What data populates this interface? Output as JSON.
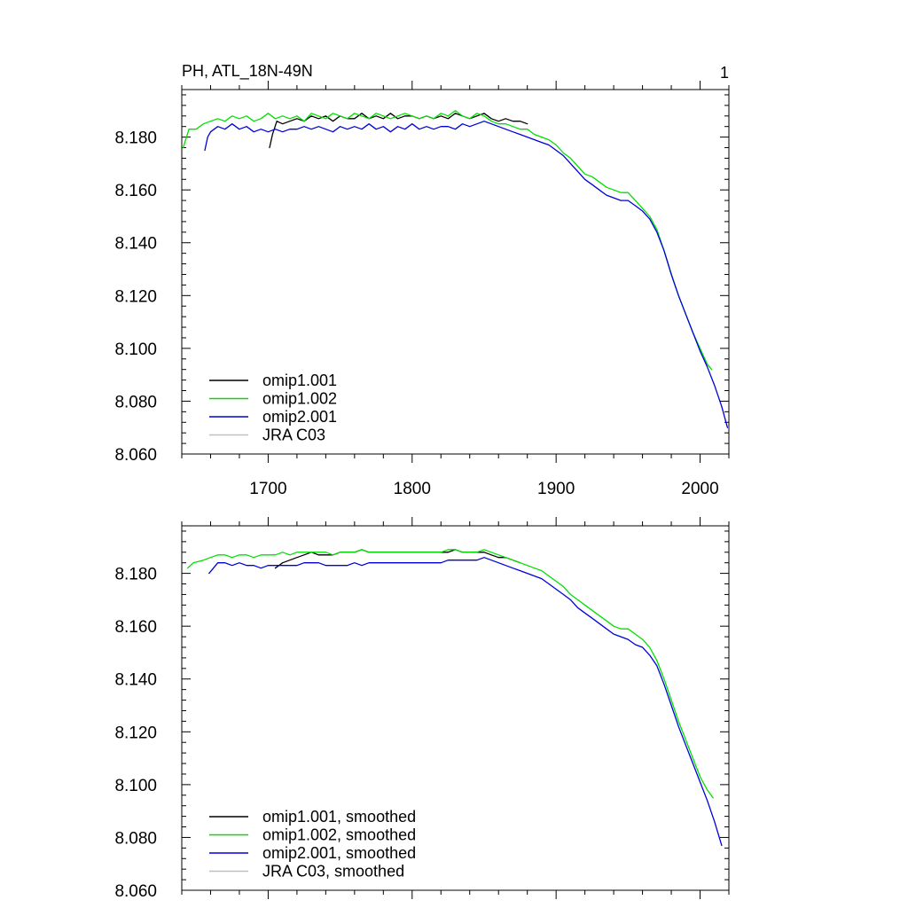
{
  "figure": {
    "title_left": "PH, ATL_18N-49N",
    "title_right": "1"
  },
  "colors": {
    "omip1_001": "#000000",
    "omip1_002": "#00e000",
    "omip2_001": "#0000d8",
    "jra_c03": "#c0c0c0"
  },
  "chart_data": [
    {
      "type": "line",
      "xlim": [
        1640,
        2020
      ],
      "ylim": [
        8.06,
        8.198
      ],
      "xticks": [
        1700,
        1800,
        1900,
        2000
      ],
      "xtick_labels": [
        "1700",
        "1800",
        "1900",
        "2000"
      ],
      "yticks": [
        8.06,
        8.08,
        8.1,
        8.12,
        8.14,
        8.16,
        8.18
      ],
      "ytick_labels": [
        "8.060",
        "8.080",
        "8.100",
        "8.120",
        "8.140",
        "8.160",
        "8.180"
      ],
      "legend_position": "bottom-left",
      "series": [
        {
          "name": "omip1.001",
          "color": "#000000",
          "x": [
            1701,
            1703,
            1706,
            1710,
            1715,
            1720,
            1725,
            1730,
            1735,
            1740,
            1745,
            1750,
            1755,
            1760,
            1765,
            1770,
            1775,
            1780,
            1785,
            1790,
            1795,
            1800,
            1805,
            1810,
            1815,
            1820,
            1825,
            1830,
            1835,
            1840,
            1845,
            1850,
            1855,
            1860,
            1865,
            1870,
            1875,
            1880
          ],
          "y": [
            8.176,
            8.181,
            8.186,
            8.185,
            8.186,
            8.187,
            8.186,
            8.188,
            8.187,
            8.188,
            8.186,
            8.188,
            8.187,
            8.187,
            8.189,
            8.187,
            8.188,
            8.187,
            8.189,
            8.187,
            8.188,
            8.188,
            8.187,
            8.188,
            8.187,
            8.188,
            8.187,
            8.189,
            8.188,
            8.187,
            8.188,
            8.189,
            8.187,
            8.186,
            8.187,
            8.186,
            8.186,
            8.185
          ]
        },
        {
          "name": "omip1.002",
          "color": "#00e000",
          "x": [
            1641,
            1645,
            1650,
            1655,
            1660,
            1665,
            1670,
            1675,
            1680,
            1685,
            1690,
            1695,
            1700,
            1705,
            1710,
            1715,
            1720,
            1725,
            1730,
            1735,
            1740,
            1745,
            1750,
            1755,
            1760,
            1765,
            1770,
            1775,
            1780,
            1785,
            1790,
            1795,
            1800,
            1805,
            1810,
            1815,
            1820,
            1825,
            1830,
            1835,
            1840,
            1845,
            1850,
            1855,
            1860,
            1865,
            1870,
            1875,
            1880,
            1885,
            1890,
            1895,
            1900,
            1905,
            1910,
            1915,
            1920,
            1925,
            1930,
            1935,
            1940,
            1945,
            1950,
            1955,
            1960,
            1965,
            1970,
            1975,
            1980,
            1985,
            1990,
            1995,
            2000,
            2005,
            2008
          ],
          "y": [
            8.176,
            8.183,
            8.183,
            8.185,
            8.186,
            8.187,
            8.186,
            8.188,
            8.187,
            8.188,
            8.186,
            8.187,
            8.189,
            8.187,
            8.188,
            8.187,
            8.188,
            8.186,
            8.189,
            8.188,
            8.187,
            8.189,
            8.188,
            8.187,
            8.189,
            8.188,
            8.187,
            8.189,
            8.188,
            8.187,
            8.188,
            8.189,
            8.188,
            8.187,
            8.188,
            8.187,
            8.189,
            8.188,
            8.19,
            8.188,
            8.187,
            8.189,
            8.188,
            8.186,
            8.185,
            8.185,
            8.184,
            8.183,
            8.183,
            8.181,
            8.18,
            8.179,
            8.177,
            8.174,
            8.172,
            8.169,
            8.166,
            8.165,
            8.163,
            8.161,
            8.16,
            8.159,
            8.159,
            8.156,
            8.153,
            8.15,
            8.145,
            8.137,
            8.128,
            8.12,
            8.113,
            8.106,
            8.1,
            8.094,
            8.092
          ]
        },
        {
          "name": "omip2.001",
          "color": "#0000d8",
          "x": [
            1656,
            1658,
            1660,
            1665,
            1670,
            1675,
            1680,
            1685,
            1690,
            1695,
            1700,
            1705,
            1710,
            1715,
            1720,
            1725,
            1730,
            1735,
            1740,
            1745,
            1750,
            1755,
            1760,
            1765,
            1770,
            1775,
            1780,
            1785,
            1790,
            1795,
            1800,
            1805,
            1810,
            1815,
            1820,
            1825,
            1830,
            1835,
            1840,
            1845,
            1850,
            1855,
            1860,
            1865,
            1870,
            1875,
            1880,
            1885,
            1890,
            1895,
            1900,
            1905,
            1910,
            1915,
            1920,
            1925,
            1930,
            1935,
            1940,
            1945,
            1950,
            1955,
            1960,
            1965,
            1970,
            1975,
            1980,
            1985,
            1990,
            1995,
            2000,
            2005,
            2010,
            2015,
            2019
          ],
          "y": [
            8.175,
            8.18,
            8.182,
            8.184,
            8.183,
            8.185,
            8.183,
            8.184,
            8.182,
            8.183,
            8.182,
            8.183,
            8.182,
            8.183,
            8.183,
            8.184,
            8.183,
            8.184,
            8.183,
            8.182,
            8.184,
            8.183,
            8.184,
            8.183,
            8.185,
            8.183,
            8.184,
            8.182,
            8.184,
            8.183,
            8.185,
            8.183,
            8.184,
            8.183,
            8.184,
            8.184,
            8.183,
            8.185,
            8.184,
            8.185,
            8.186,
            8.185,
            8.184,
            8.183,
            8.182,
            8.181,
            8.18,
            8.179,
            8.178,
            8.177,
            8.175,
            8.173,
            8.17,
            8.167,
            8.164,
            8.162,
            8.16,
            8.158,
            8.157,
            8.156,
            8.156,
            8.154,
            8.152,
            8.149,
            8.144,
            8.137,
            8.128,
            8.12,
            8.113,
            8.106,
            8.099,
            8.093,
            8.086,
            8.078,
            8.07
          ]
        },
        {
          "name": "JRA C03",
          "color": "#c0c0c0",
          "x": [],
          "y": []
        }
      ]
    },
    {
      "type": "line",
      "xlim": [
        1640,
        2020
      ],
      "ylim": [
        8.06,
        8.198
      ],
      "xticks": [
        1700,
        1800,
        1900,
        2000
      ],
      "xtick_labels": [],
      "yticks": [
        8.06,
        8.08,
        8.1,
        8.12,
        8.14,
        8.16,
        8.18
      ],
      "ytick_labels": [
        "8.060",
        "8.080",
        "8.100",
        "8.120",
        "8.140",
        "8.160",
        "8.180"
      ],
      "legend_position": "bottom-left",
      "series": [
        {
          "name": "omip1.001, smoothed",
          "color": "#000000",
          "x": [
            1705,
            1710,
            1715,
            1720,
            1725,
            1730,
            1735,
            1740,
            1745,
            1750,
            1755,
            1760,
            1765,
            1770,
            1775,
            1780,
            1785,
            1790,
            1795,
            1800,
            1805,
            1810,
            1815,
            1820,
            1825,
            1830,
            1835,
            1840,
            1845,
            1850,
            1855,
            1860,
            1865,
            1870,
            1875
          ],
          "y": [
            8.182,
            8.184,
            8.185,
            8.186,
            8.187,
            8.188,
            8.187,
            8.187,
            8.187,
            8.188,
            8.188,
            8.188,
            8.189,
            8.188,
            8.188,
            8.188,
            8.188,
            8.188,
            8.188,
            8.188,
            8.188,
            8.188,
            8.188,
            8.188,
            8.188,
            8.189,
            8.188,
            8.188,
            8.188,
            8.188,
            8.187,
            8.186,
            8.186,
            8.185,
            8.184
          ]
        },
        {
          "name": "omip1.002, smoothed",
          "color": "#00e000",
          "x": [
            1644,
            1648,
            1655,
            1660,
            1665,
            1670,
            1675,
            1680,
            1685,
            1690,
            1695,
            1700,
            1705,
            1710,
            1715,
            1720,
            1725,
            1730,
            1735,
            1740,
            1745,
            1750,
            1755,
            1760,
            1765,
            1770,
            1775,
            1780,
            1785,
            1790,
            1795,
            1800,
            1805,
            1810,
            1815,
            1820,
            1825,
            1830,
            1835,
            1840,
            1845,
            1850,
            1855,
            1860,
            1865,
            1870,
            1875,
            1880,
            1885,
            1890,
            1895,
            1900,
            1905,
            1910,
            1915,
            1920,
            1925,
            1930,
            1935,
            1940,
            1945,
            1950,
            1955,
            1960,
            1965,
            1970,
            1975,
            1980,
            1985,
            1990,
            1995,
            2000,
            2005,
            2009
          ],
          "y": [
            8.182,
            8.184,
            8.185,
            8.186,
            8.187,
            8.187,
            8.186,
            8.187,
            8.187,
            8.186,
            8.187,
            8.187,
            8.187,
            8.188,
            8.187,
            8.188,
            8.188,
            8.188,
            8.188,
            8.188,
            8.187,
            8.188,
            8.188,
            8.188,
            8.189,
            8.188,
            8.188,
            8.188,
            8.188,
            8.188,
            8.188,
            8.188,
            8.188,
            8.188,
            8.188,
            8.188,
            8.189,
            8.189,
            8.188,
            8.188,
            8.188,
            8.189,
            8.188,
            8.187,
            8.186,
            8.185,
            8.184,
            8.183,
            8.182,
            8.181,
            8.179,
            8.177,
            8.175,
            8.172,
            8.17,
            8.168,
            8.166,
            8.164,
            8.162,
            8.16,
            8.159,
            8.159,
            8.157,
            8.155,
            8.152,
            8.147,
            8.14,
            8.132,
            8.124,
            8.117,
            8.11,
            8.103,
            8.098,
            8.095
          ]
        },
        {
          "name": "omip2.001, smoothed",
          "color": "#0000d8",
          "x": [
            1659,
            1662,
            1665,
            1670,
            1675,
            1680,
            1685,
            1690,
            1695,
            1700,
            1705,
            1710,
            1715,
            1720,
            1725,
            1730,
            1735,
            1740,
            1745,
            1750,
            1755,
            1760,
            1765,
            1770,
            1775,
            1780,
            1785,
            1790,
            1795,
            1800,
            1805,
            1810,
            1815,
            1820,
            1825,
            1830,
            1835,
            1840,
            1845,
            1850,
            1855,
            1860,
            1865,
            1870,
            1875,
            1880,
            1885,
            1890,
            1895,
            1900,
            1905,
            1910,
            1915,
            1920,
            1925,
            1930,
            1935,
            1940,
            1945,
            1950,
            1955,
            1960,
            1965,
            1970,
            1975,
            1980,
            1985,
            1990,
            1995,
            2000,
            2005,
            2010,
            2015
          ],
          "y": [
            8.18,
            8.182,
            8.184,
            8.184,
            8.183,
            8.184,
            8.183,
            8.183,
            8.182,
            8.183,
            8.183,
            8.183,
            8.183,
            8.183,
            8.184,
            8.184,
            8.184,
            8.183,
            8.183,
            8.183,
            8.183,
            8.184,
            8.183,
            8.184,
            8.184,
            8.184,
            8.184,
            8.184,
            8.184,
            8.184,
            8.184,
            8.184,
            8.184,
            8.184,
            8.185,
            8.185,
            8.185,
            8.185,
            8.185,
            8.186,
            8.185,
            8.184,
            8.183,
            8.182,
            8.181,
            8.18,
            8.179,
            8.178,
            8.176,
            8.174,
            8.172,
            8.17,
            8.167,
            8.165,
            8.163,
            8.161,
            8.159,
            8.157,
            8.156,
            8.155,
            8.153,
            8.152,
            8.149,
            8.145,
            8.138,
            8.13,
            8.122,
            8.115,
            8.108,
            8.101,
            8.094,
            8.086,
            8.077
          ]
        },
        {
          "name": "JRA C03, smoothed",
          "color": "#c0c0c0",
          "x": [],
          "y": []
        }
      ]
    }
  ]
}
